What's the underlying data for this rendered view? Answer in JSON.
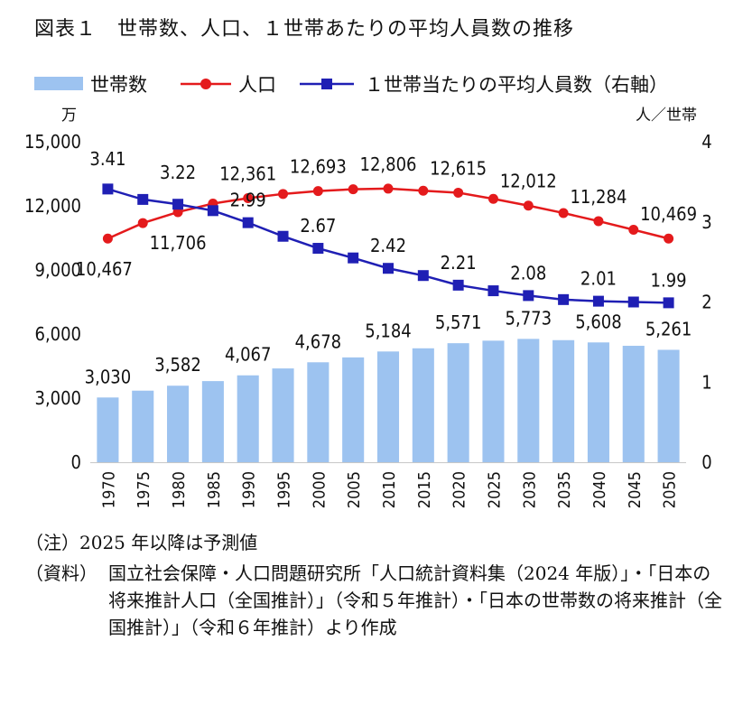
{
  "title": "図表１　世帯数、人口、１世帯あたりの平均人員数の推移",
  "notes": {
    "note1": "（注）2025 年以降は予測値",
    "source_label": "（資料）",
    "source_text": "国立社会保障・人口問題研究所「人口統計資料集（2024 年版）」・「日本の将来推計人口（全国推計）」（令和５年推計）・「日本の世帯数の将来推計（全国推計）」（令和６年推計）より作成"
  },
  "chart_data": {
    "type": "bar",
    "categories": [
      "1970",
      "1975",
      "1980",
      "1985",
      "1990",
      "1995",
      "2000",
      "2005",
      "2010",
      "2015",
      "2020",
      "2025",
      "2030",
      "2035",
      "2040",
      "2045",
      "2050"
    ],
    "left_axis": {
      "unit": "万",
      "ticks": [
        "0",
        "3,000",
        "6,000",
        "9,000",
        "12,000",
        "15,000"
      ],
      "range": [
        0,
        15000
      ]
    },
    "right_axis": {
      "unit": "人／世帯",
      "ticks": [
        "0",
        "1",
        "2",
        "3",
        "4"
      ],
      "range": [
        0,
        4
      ]
    },
    "series": [
      {
        "name": "世帯数",
        "type": "bar",
        "axis": "left",
        "color": "#9dc3f0",
        "values": [
          3030,
          3350,
          3582,
          3798,
          4067,
          4390,
          4678,
          4906,
          5184,
          5333,
          5571,
          5690,
          5773,
          5714,
          5608,
          5450,
          5261
        ],
        "labels": {
          "0": "3,030",
          "2": "3,582",
          "4": "4,067",
          "6": "4,678",
          "8": "5,184",
          "10": "5,571",
          "12": "5,773",
          "14": "5,608",
          "16": "5,261"
        }
      },
      {
        "name": "人口",
        "type": "line",
        "axis": "left",
        "color": "#e41a1c",
        "values": [
          10467,
          11194,
          11706,
          12105,
          12361,
          12557,
          12693,
          12777,
          12806,
          12709,
          12615,
          12326,
          12012,
          11664,
          11284,
          10880,
          10469
        ],
        "labels": {
          "0": "10,467",
          "2": "11,706",
          "4": "12,361",
          "6": "12,693",
          "8": "12,806",
          "10": "12,615",
          "12": "12,012",
          "14": "11,284",
          "16": "10,469"
        }
      },
      {
        "name": "１世帯当たりの平均人員数（右軸）",
        "type": "line",
        "axis": "right",
        "color": "#1f1fb4",
        "values": [
          3.41,
          3.28,
          3.22,
          3.14,
          2.99,
          2.82,
          2.67,
          2.55,
          2.42,
          2.33,
          2.21,
          2.14,
          2.08,
          2.03,
          2.01,
          2.0,
          1.99
        ],
        "labels": {
          "0": "3.41",
          "2": "3.22",
          "4": "2.99",
          "6": "2.67",
          "8": "2.42",
          "10": "2.21",
          "12": "2.08",
          "14": "2.01",
          "16": "1.99"
        }
      }
    ]
  }
}
